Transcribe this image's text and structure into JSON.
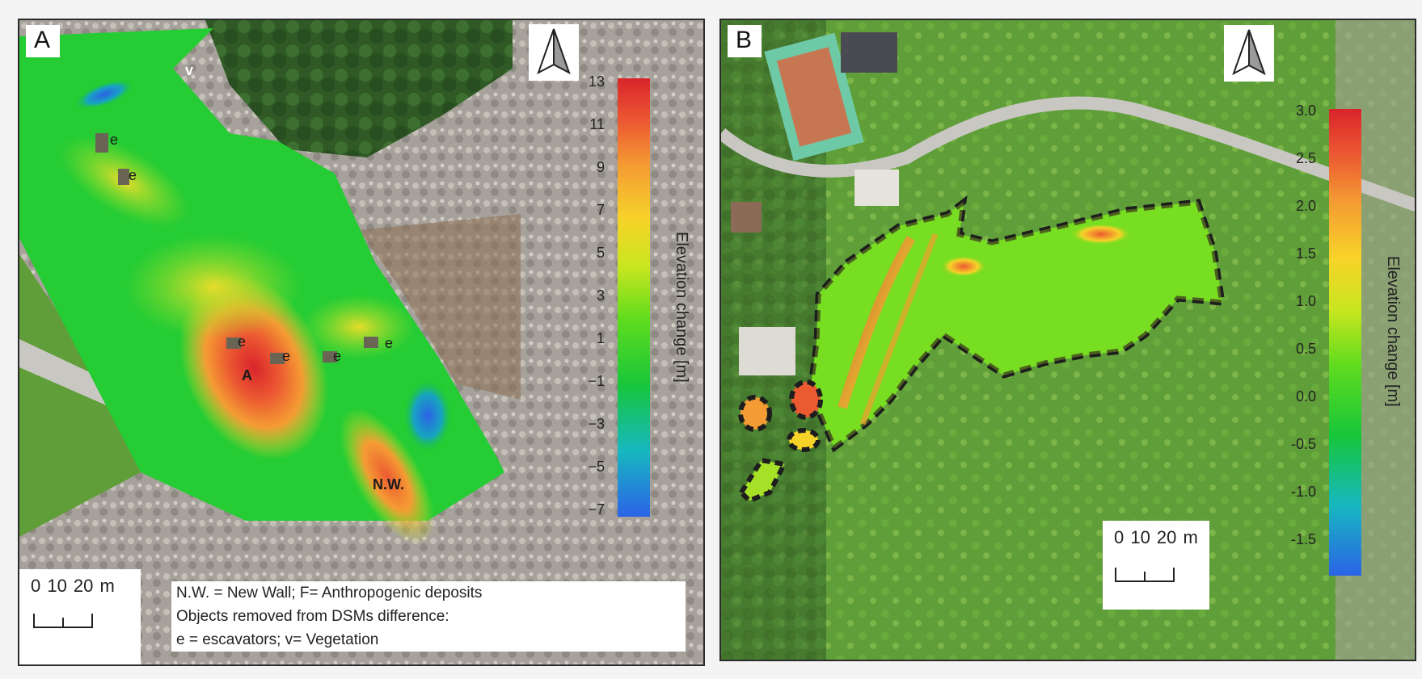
{
  "panel_a": {
    "letter": "A",
    "legend": {
      "title": "Elevation  change [m]",
      "ticks": [
        "13",
        "11",
        "9",
        "7",
        "5",
        "3",
        "1",
        "−1",
        "−3",
        "−5",
        "−7"
      ]
    },
    "scale_bar": "0   10  20 m",
    "caption": {
      "line1": "N.W. = New Wall; F= Anthropogenic deposits",
      "line2": "Objects removed from DSMs difference:",
      "line3": "e = escavators; v= Vegetation"
    },
    "map_labels": {
      "e1": "e",
      "e2": "e",
      "e3": "e",
      "e4": "e",
      "e5": "e",
      "e6": "e",
      "v": "v",
      "a": "A",
      "nw": "N.W."
    }
  },
  "panel_b": {
    "letter": "B",
    "legend": {
      "title": "Elevation  change [m]",
      "ticks": [
        "3.0",
        "2.5",
        "2.0",
        "1.5",
        "1.0",
        "0.5",
        "0.0",
        "-0.5",
        "-1.0",
        "-1.5"
      ]
    },
    "scale_bar": "0  10 20 m"
  },
  "colors": {
    "high": "#d9242b",
    "mid_high": "#f49c33",
    "zero": "#c9e61f",
    "low": "#17c63a",
    "lowest": "#2b63e6",
    "rubble": "#a6a29b",
    "forest": "#2f5a25",
    "meadow": "#5f9e38",
    "road": "#c9c7c2",
    "outline": "#1d1d1d"
  },
  "icons": {
    "north_arrow": "north-arrow-icon",
    "scale_bar": "scale-bar-icon"
  }
}
